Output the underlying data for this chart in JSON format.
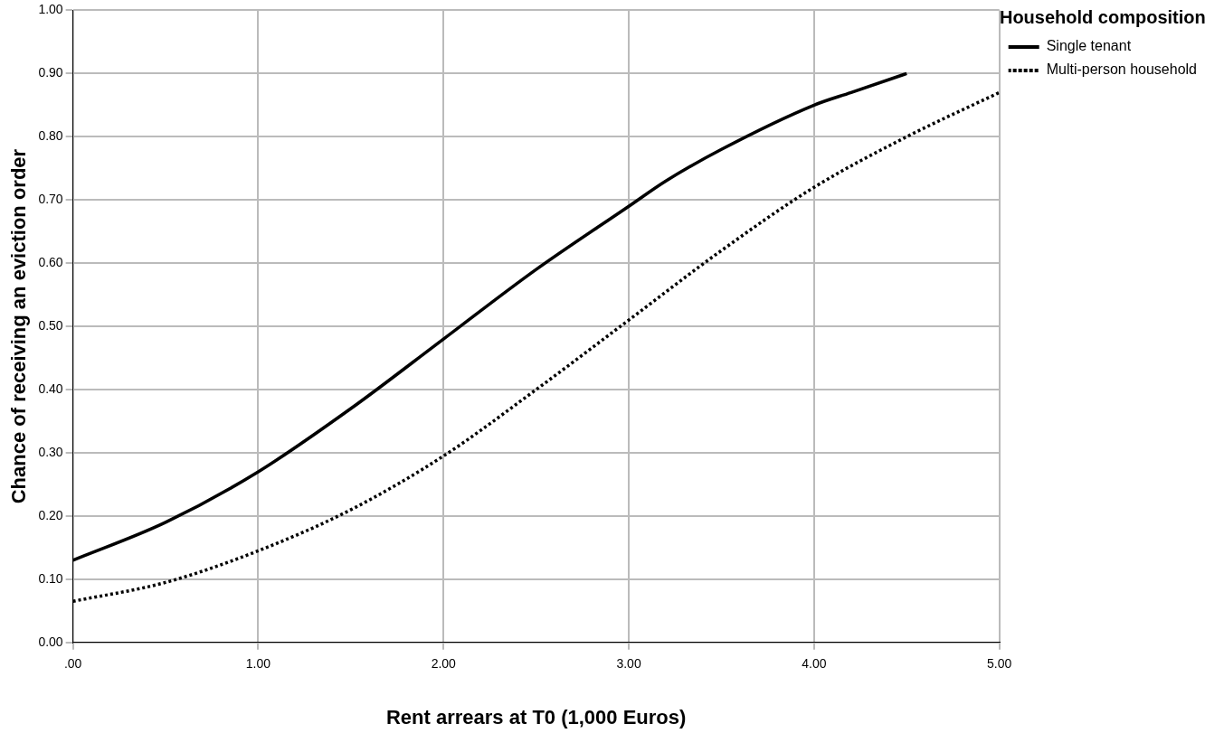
{
  "chart_data": {
    "type": "line",
    "xlabel": "Rent arrears at T0 (1,000 Euros)",
    "ylabel": "Chance of receiving an eviction order",
    "legend_title": "Household composition",
    "series": [
      {
        "name": "Single tenant",
        "color": "#000000",
        "line_style": "solid",
        "x": [
          0,
          0.5,
          1.0,
          1.5,
          2.0,
          2.5,
          3.0,
          3.2,
          3.5,
          4.0,
          4.2,
          4.5
        ],
        "values": [
          0.13,
          0.19,
          0.27,
          0.37,
          0.48,
          0.59,
          0.69,
          0.73,
          0.78,
          0.85,
          0.87,
          0.9
        ]
      },
      {
        "name": "Multi-person household",
        "color": "#000000",
        "line_style": "dotted",
        "x": [
          0,
          0.5,
          1.0,
          1.5,
          2.0,
          2.5,
          3.0,
          3.5,
          4.0,
          4.5,
          5.0
        ],
        "values": [
          0.065,
          0.095,
          0.145,
          0.21,
          0.295,
          0.4,
          0.51,
          0.62,
          0.72,
          0.8,
          0.87
        ]
      }
    ],
    "xlim": [
      0,
      5
    ],
    "xticks": [
      {
        "value": 0,
        "label": ".00"
      },
      {
        "value": 1,
        "label": "1.00"
      },
      {
        "value": 2,
        "label": "2.00"
      },
      {
        "value": 3,
        "label": "3.00"
      },
      {
        "value": 4,
        "label": "4.00"
      },
      {
        "value": 5,
        "label": "5.00"
      }
    ],
    "ylim": [
      0,
      1
    ],
    "yticks": [
      {
        "value": 0,
        "label": "0.00"
      },
      {
        "value": 0.1,
        "label": "0.10"
      },
      {
        "value": 0.2,
        "label": "0.20"
      },
      {
        "value": 0.3,
        "label": "0.30"
      },
      {
        "value": 0.4,
        "label": "0.40"
      },
      {
        "value": 0.5,
        "label": "0.50"
      },
      {
        "value": 0.6,
        "label": "0.60"
      },
      {
        "value": 0.7,
        "label": "0.70"
      },
      {
        "value": 0.8,
        "label": "0.80"
      },
      {
        "value": 0.9,
        "label": "0.90"
      },
      {
        "value": 1,
        "label": "1.00"
      }
    ],
    "grid": true,
    "legend": "top right",
    "marker": "none"
  }
}
